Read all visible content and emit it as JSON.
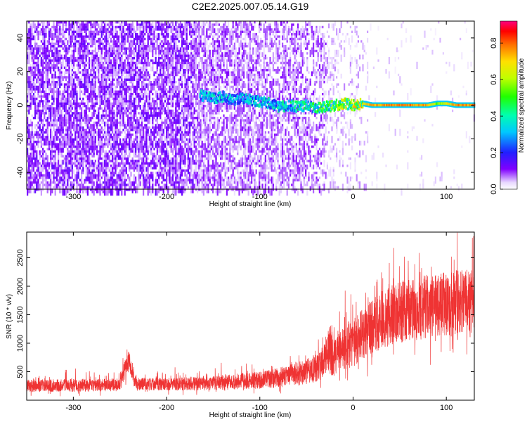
{
  "title": "C2E2.2025.007.05.14.G19",
  "chart_data": [
    {
      "type": "heatmap",
      "xlabel": "Height of straight line (km)",
      "ylabel": "Frequency (Hz)",
      "xlim": [
        -350,
        130
      ],
      "ylim": [
        -50,
        50
      ],
      "xticks": [
        -300,
        -200,
        -100,
        0,
        100
      ],
      "yticks": [
        -40,
        -20,
        0,
        20,
        40
      ],
      "colorbar": {
        "label": "Normalized spectral amplitude",
        "range": [
          0,
          0.92
        ],
        "ticks": [
          "0.0",
          "0.2",
          "0.4",
          "0.6",
          "0.8"
        ]
      },
      "signal_trace": {
        "x": [
          -165,
          -150,
          -140,
          -130,
          -120,
          -110,
          -100,
          -90,
          -80,
          -70,
          -60,
          -50,
          -40,
          -30,
          -20,
          -10,
          0,
          10,
          20,
          40,
          60,
          80,
          90,
          100,
          110,
          130
        ],
        "frequency": [
          6,
          4,
          5,
          3,
          4,
          3,
          2,
          1,
          -1,
          0,
          -1,
          0,
          -2,
          -1,
          0,
          1,
          0,
          1,
          0,
          0,
          0,
          0,
          1,
          1,
          0,
          0
        ],
        "amplitude": [
          0.35,
          0.4,
          0.38,
          0.35,
          0.36,
          0.38,
          0.4,
          0.42,
          0.4,
          0.42,
          0.45,
          0.5,
          0.5,
          0.55,
          0.6,
          0.65,
          0.7,
          0.75,
          0.82,
          0.85,
          0.85,
          0.82,
          0.6,
          0.75,
          0.85,
          0.85
        ]
      }
    },
    {
      "type": "line",
      "xlabel": "Height of straight line (km)",
      "ylabel": "SNR (10 * v/v)",
      "xlim": [
        -350,
        130
      ],
      "ylim": [
        0,
        2950
      ],
      "xticks": [
        -300,
        -200,
        -100,
        0,
        100
      ],
      "yticks": [
        500,
        1000,
        1500,
        2000,
        2500
      ],
      "color": "#ef3333",
      "envelope": {
        "x": [
          -350,
          -300,
          -250,
          -245,
          -240,
          -235,
          -230,
          -200,
          -150,
          -100,
          -70,
          -50,
          -35,
          -28,
          -25,
          -20,
          -10,
          0,
          10,
          20,
          40,
          60,
          80,
          100,
          130
        ],
        "mean": [
          250,
          260,
          270,
          500,
          700,
          350,
          280,
          280,
          300,
          350,
          420,
          500,
          600,
          800,
          900,
          750,
          900,
          1000,
          1150,
          1300,
          1500,
          1600,
          1650,
          1700,
          1750
        ],
        "spread": [
          150,
          150,
          150,
          250,
          250,
          150,
          150,
          150,
          170,
          200,
          250,
          300,
          350,
          500,
          650,
          450,
          500,
          550,
          600,
          650,
          700,
          750,
          750,
          750,
          750
        ]
      }
    }
  ]
}
